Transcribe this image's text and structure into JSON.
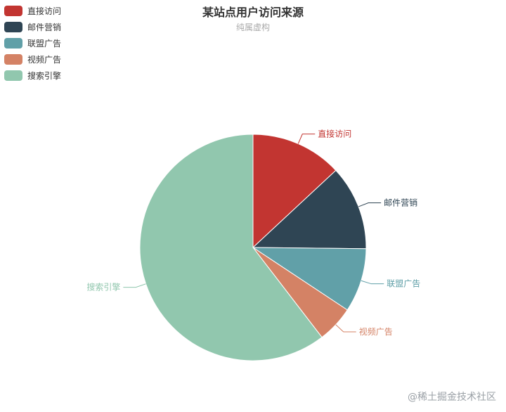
{
  "chart_data": {
    "type": "pie",
    "title": "某站点用户访问来源",
    "subtitle": "纯属虚构",
    "categories": [
      "直接访问",
      "邮件营销",
      "联盟广告",
      "视频广告",
      "搜索引擎"
    ],
    "values": [
      335,
      310,
      234,
      135,
      1548
    ],
    "colors": [
      "#c23531",
      "#2f4554",
      "#61a0a8",
      "#d48265",
      "#91c7ae"
    ],
    "legend_position": "top-left"
  },
  "watermark": "@稀土掘金技术社区"
}
